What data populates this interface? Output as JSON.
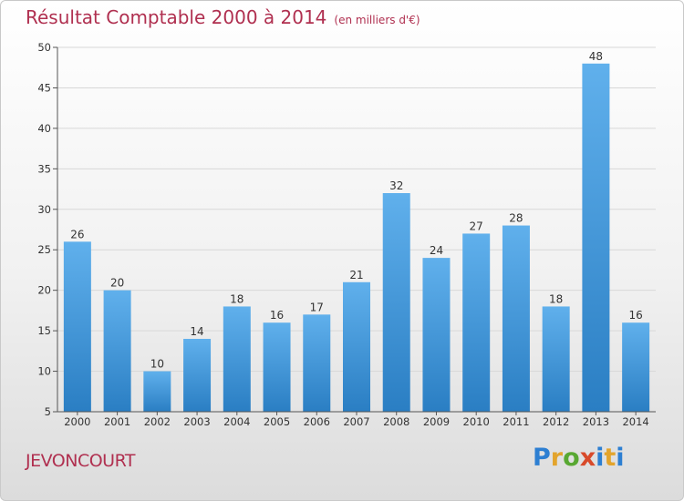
{
  "title": "Résultat Comptable 2000 à 2014",
  "subtitle": "(en milliers d'€)",
  "place": "JEVONCOURT",
  "logo": {
    "letters": [
      "P",
      "r",
      "o",
      "x",
      "i",
      "t",
      "i"
    ],
    "colors": [
      "#2d7fd2",
      "#e3a42c",
      "#58a832",
      "#d84a2a",
      "#2d7fd2",
      "#e3a42c",
      "#2d7fd2"
    ]
  },
  "colors": {
    "bar_light": "#60b0ec",
    "bar_dark": "#2a7ec3",
    "accent": "#b03050"
  },
  "chart_data": {
    "type": "bar",
    "categories": [
      "2000",
      "2001",
      "2002",
      "2003",
      "2004",
      "2005",
      "2006",
      "2007",
      "2008",
      "2009",
      "2010",
      "2011",
      "2012",
      "2013",
      "2014"
    ],
    "values": [
      26,
      20,
      10,
      14,
      18,
      16,
      17,
      21,
      32,
      24,
      27,
      28,
      18,
      48,
      16
    ],
    "ylim": [
      5,
      50
    ],
    "yticks": [
      5,
      10,
      15,
      20,
      25,
      30,
      35,
      40,
      45,
      50
    ],
    "grid": true,
    "title": "Résultat Comptable 2000 à 2014",
    "xlabel": "",
    "ylabel": ""
  }
}
